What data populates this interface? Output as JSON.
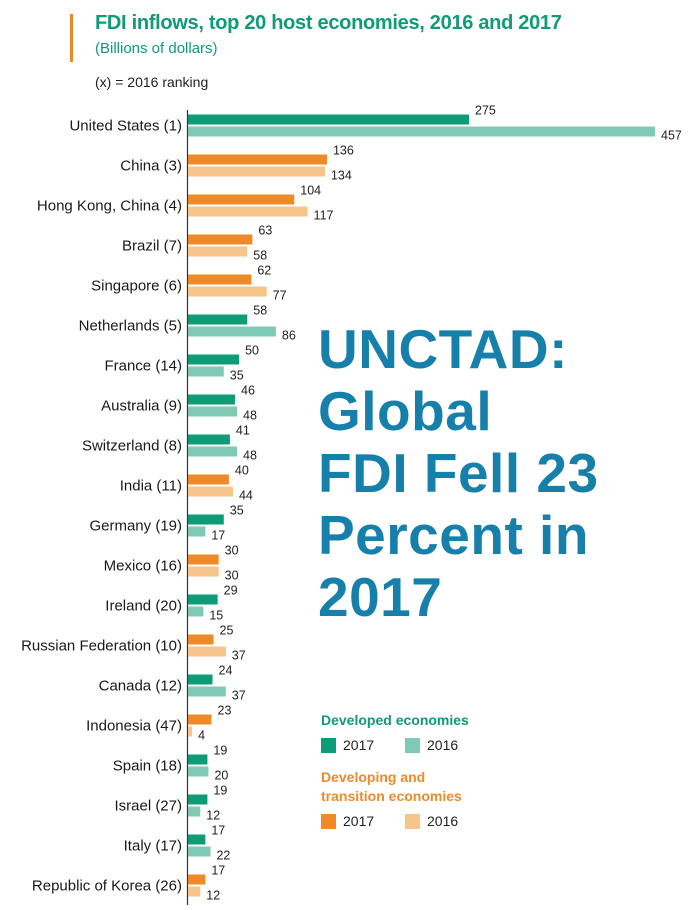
{
  "header": {
    "title": "FDI inflows, top 20 host economies, 2016 and 2017",
    "subtitle": "(Billions of dollars)",
    "note": "(x) = 2016 ranking"
  },
  "headline": "UNCTAD:\nGlobal\nFDI Fell 23\nPercent in\n2017",
  "legend": {
    "developed": {
      "title": "Developed economies",
      "items": [
        {
          "label": "2017",
          "color": "#0f9b76"
        },
        {
          "label": "2016",
          "color": "#7fcab5"
        }
      ]
    },
    "developing": {
      "title": "Developing and\ntransition economies",
      "items": [
        {
          "label": "2017",
          "color": "#ee8a2a"
        },
        {
          "label": "2016",
          "color": "#f7c48a"
        }
      ]
    }
  },
  "colors": {
    "developed_2017": "#0f9b76",
    "developed_2016": "#7fcab5",
    "developing_2017": "#ee8a2a",
    "developing_2016": "#f7c48a",
    "title": "#0f9b76",
    "headline": "#1680ab"
  },
  "chart_data": {
    "type": "bar",
    "orientation": "horizontal",
    "title": "FDI inflows, top 20 host economies, 2016 and 2017",
    "subtitle": "(Billions of dollars)",
    "categories": [
      "United States (1)",
      "China (3)",
      "Hong Kong, China (4)",
      "Brazil (7)",
      "Singapore (6)",
      "Netherlands (5)",
      "France (14)",
      "Australia (9)",
      "Switzerland (8)",
      "India (11)",
      "Germany (19)",
      "Mexico (16)",
      "Ireland (20)",
      "Russian Federation (10)",
      "Canada (12)",
      "Indonesia (47)",
      "Spain (18)",
      "Israel (27)",
      "Italy (17)",
      "Republic of Korea (26)"
    ],
    "group": [
      "developed",
      "developing",
      "developing",
      "developing",
      "developing",
      "developed",
      "developed",
      "developed",
      "developed",
      "developing",
      "developed",
      "developing",
      "developed",
      "developing",
      "developed",
      "developing",
      "developed",
      "developed",
      "developed",
      "developing"
    ],
    "series": [
      {
        "name": "2017",
        "values": [
          275,
          136,
          104,
          63,
          62,
          58,
          50,
          46,
          41,
          40,
          35,
          30,
          29,
          25,
          24,
          23,
          19,
          19,
          17,
          17
        ]
      },
      {
        "name": "2016",
        "values": [
          457,
          134,
          117,
          58,
          77,
          86,
          35,
          48,
          48,
          44,
          17,
          30,
          15,
          37,
          37,
          4,
          20,
          12,
          22,
          12
        ]
      }
    ],
    "xlim": [
      0,
      457
    ]
  }
}
